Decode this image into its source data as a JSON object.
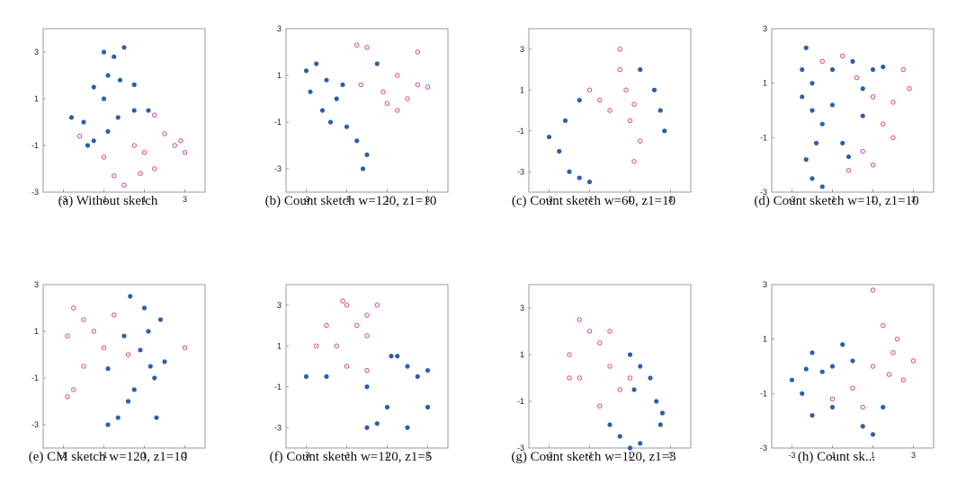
{
  "colors": {
    "class_a": "#2d5fa8",
    "class_b": "#d6439b"
  },
  "chart_data": [
    {
      "type": "scatter",
      "caption": "(a) Without sketch",
      "xlim": [
        -4,
        4
      ],
      "ylim": [
        -3,
        4
      ],
      "xticks": [
        "-3",
        "-1",
        "1",
        "3"
      ],
      "yticks": [
        "3",
        "1",
        "-1",
        "-3"
      ],
      "series": [
        {
          "marker": "filled",
          "points": [
            [
              -1,
              3
            ],
            [
              -0.5,
              2.8
            ],
            [
              0,
              3.2
            ],
            [
              -0.8,
              2
            ],
            [
              -1.5,
              1.5
            ],
            [
              -0.2,
              1.8
            ],
            [
              0.5,
              1.6
            ],
            [
              -1,
              1
            ],
            [
              -2,
              0
            ],
            [
              -1.5,
              -0.8
            ],
            [
              -0.8,
              -0.4
            ],
            [
              -0.3,
              0.2
            ],
            [
              0.5,
              0.5
            ],
            [
              1.2,
              0.5
            ],
            [
              -1.8,
              -1
            ],
            [
              -2.6,
              0.2
            ]
          ]
        },
        {
          "marker": "open",
          "points": [
            [
              1.5,
              0.3
            ],
            [
              2,
              -0.5
            ],
            [
              2.5,
              -1
            ],
            [
              3,
              -1.3
            ],
            [
              1,
              -1.3
            ],
            [
              1.5,
              -2
            ],
            [
              0.5,
              -1
            ],
            [
              -0.5,
              -2.3
            ],
            [
              0,
              -2.7
            ],
            [
              -1,
              -1.5
            ],
            [
              -2.2,
              -0.6
            ],
            [
              0.8,
              -2.2
            ],
            [
              2.8,
              -0.8
            ]
          ]
        }
      ]
    },
    {
      "type": "scatter",
      "caption": "(b) Count sketch w=120, z1=10",
      "xlim": [
        -4,
        4
      ],
      "ylim": [
        -4,
        3
      ],
      "xticks": [
        "-3",
        "-1",
        "1",
        "3"
      ],
      "yticks": [
        "3",
        "1",
        "-1",
        "-3"
      ],
      "series": [
        {
          "marker": "filled",
          "points": [
            [
              -3,
              1.2
            ],
            [
              -2.5,
              1.5
            ],
            [
              -2,
              0.8
            ],
            [
              -2.8,
              0.3
            ],
            [
              -1.5,
              0
            ],
            [
              -1.8,
              -1
            ],
            [
              -1,
              -1.2
            ],
            [
              -0.5,
              -1.8
            ],
            [
              0,
              -2.4
            ],
            [
              -0.2,
              -3
            ],
            [
              -2.2,
              -0.5
            ],
            [
              0.5,
              1.5
            ],
            [
              -1.2,
              0.6
            ]
          ]
        },
        {
          "marker": "open",
          "points": [
            [
              -0.5,
              2.3
            ],
            [
              0,
              2.2
            ],
            [
              1.5,
              1
            ],
            [
              2,
              0
            ],
            [
              1,
              -0.2
            ],
            [
              2.5,
              0.6
            ],
            [
              3,
              0.5
            ],
            [
              2.5,
              2
            ],
            [
              -0.3,
              0.6
            ],
            [
              0.8,
              0.3
            ],
            [
              1.5,
              -0.5
            ]
          ]
        }
      ]
    },
    {
      "type": "scatter",
      "caption": "(c) Count sketch w=60, z1=10",
      "xlim": [
        -4,
        4
      ],
      "ylim": [
        -4,
        4
      ],
      "xticks": [
        "-3",
        "-1",
        "1",
        "3"
      ],
      "yticks": [
        "3",
        "1",
        "-1",
        "-3"
      ],
      "series": [
        {
          "marker": "filled",
          "points": [
            [
              -3,
              -1.3
            ],
            [
              -2.5,
              -2
            ],
            [
              -2,
              -3
            ],
            [
              -1.5,
              -3.3
            ],
            [
              -1,
              -3.5
            ],
            [
              -2.2,
              -0.5
            ],
            [
              -1.5,
              0.5
            ],
            [
              1.5,
              2
            ],
            [
              2.2,
              1
            ],
            [
              2.5,
              0
            ],
            [
              2.7,
              -1
            ]
          ]
        },
        {
          "marker": "open",
          "points": [
            [
              -1,
              1
            ],
            [
              0,
              0
            ],
            [
              1,
              -0.5
            ],
            [
              1.5,
              -1.5
            ],
            [
              1.2,
              -2.5
            ],
            [
              -0.5,
              0.5
            ],
            [
              0.5,
              2
            ],
            [
              0.8,
              1
            ],
            [
              1.2,
              0.3
            ],
            [
              0.5,
              3
            ]
          ]
        }
      ]
    },
    {
      "type": "scatter",
      "caption": "(d) Count sketch w=10, z1=10",
      "xlim": [
        -4,
        4
      ],
      "ylim": [
        -3,
        3
      ],
      "xticks": [
        "-3",
        "-1",
        "1",
        "3"
      ],
      "yticks": [
        "3",
        "1",
        "-1",
        "-3"
      ],
      "series": [
        {
          "marker": "filled",
          "points": [
            [
              -2.3,
              2.3
            ],
            [
              -2.5,
              1.5
            ],
            [
              -2,
              1
            ],
            [
              -2.5,
              0.5
            ],
            [
              -2,
              0
            ],
            [
              -1.5,
              -0.5
            ],
            [
              -1.8,
              -1.2
            ],
            [
              -2.3,
              -1.8
            ],
            [
              -2,
              -2.5
            ],
            [
              -1.5,
              -2.8
            ],
            [
              -0.5,
              -1.2
            ],
            [
              0.5,
              0.8
            ],
            [
              1,
              1.5
            ],
            [
              1.5,
              1.6
            ],
            [
              -1,
              0.2
            ],
            [
              0,
              1.8
            ],
            [
              0.5,
              -0.2
            ],
            [
              -0.2,
              -1.7
            ],
            [
              -1,
              1.5
            ]
          ]
        },
        {
          "marker": "open",
          "points": [
            [
              -1.5,
              1.8
            ],
            [
              -0.5,
              2
            ],
            [
              0.2,
              1.2
            ],
            [
              1,
              0.5
            ],
            [
              2,
              0.3
            ],
            [
              2.8,
              0.8
            ],
            [
              2.5,
              1.5
            ],
            [
              1.5,
              -0.5
            ],
            [
              0.5,
              -1.5
            ],
            [
              1,
              -2
            ],
            [
              -0.2,
              -2.2
            ],
            [
              2,
              -1
            ]
          ]
        }
      ]
    },
    {
      "type": "scatter",
      "caption": "(e) CM sketch w=120, z1=10",
      "xlim": [
        -4,
        4
      ],
      "ylim": [
        -4,
        3
      ],
      "xticks": [
        "-3",
        "-1",
        "1",
        "3"
      ],
      "yticks": [
        "3",
        "1",
        "-1",
        "-3"
      ],
      "series": [
        {
          "marker": "filled",
          "points": [
            [
              0.3,
              2.5
            ],
            [
              1,
              2
            ],
            [
              1.8,
              1.5
            ],
            [
              1.2,
              1
            ],
            [
              0.8,
              0.2
            ],
            [
              1.3,
              -0.5
            ],
            [
              1.5,
              -1
            ],
            [
              0.5,
              -1.5
            ],
            [
              0.2,
              -2
            ],
            [
              -0.3,
              -2.7
            ],
            [
              -0.8,
              -3
            ],
            [
              1.6,
              -2.7
            ],
            [
              2,
              -0.3
            ],
            [
              0,
              0.8
            ],
            [
              -0.8,
              -0.6
            ]
          ]
        },
        {
          "marker": "open",
          "points": [
            [
              -2.5,
              2
            ],
            [
              -2,
              1.5
            ],
            [
              -1.5,
              1
            ],
            [
              -1,
              0.3
            ],
            [
              -2,
              -0.5
            ],
            [
              -2.5,
              -1.5
            ],
            [
              -2.8,
              -1.8
            ],
            [
              -0.5,
              1.7
            ],
            [
              0.2,
              0
            ],
            [
              -2.8,
              0.8
            ],
            [
              3,
              0.3
            ]
          ]
        }
      ]
    },
    {
      "type": "scatter",
      "caption": "(f) Count sketch w=120, z1=5",
      "xlim": [
        -4,
        4
      ],
      "ylim": [
        -4,
        4
      ],
      "xticks": [
        "-3",
        "-1",
        "1",
        "3"
      ],
      "yticks": [
        "3",
        "1",
        "-1",
        "-3"
      ],
      "series": [
        {
          "marker": "filled",
          "points": [
            [
              0,
              -1
            ],
            [
              1,
              -2
            ],
            [
              2,
              -3
            ],
            [
              3,
              -2
            ],
            [
              2,
              0
            ],
            [
              1.5,
              0.5
            ],
            [
              2.5,
              -0.5
            ],
            [
              0,
              -3
            ],
            [
              -2,
              -0.5
            ],
            [
              -3,
              -0.5
            ],
            [
              1.2,
              0.5
            ],
            [
              3,
              -0.2
            ],
            [
              0.5,
              -2.8
            ]
          ]
        },
        {
          "marker": "open",
          "points": [
            [
              -1,
              3
            ],
            [
              0,
              2.5
            ],
            [
              -2,
              2
            ],
            [
              -1.5,
              1
            ],
            [
              -1,
              0
            ],
            [
              0,
              1.5
            ],
            [
              -2.5,
              1
            ],
            [
              0.5,
              3
            ],
            [
              -0.5,
              2
            ],
            [
              -1.2,
              3.2
            ],
            [
              0,
              -0.2
            ]
          ]
        }
      ]
    },
    {
      "type": "scatter",
      "caption": "(g) Count sketch w=120, z1=3",
      "xlim": [
        -4,
        4
      ],
      "ylim": [
        -3,
        4
      ],
      "xticks": [
        "-3",
        "-1",
        "1",
        "3"
      ],
      "yticks": [
        "3",
        "1",
        "-1",
        "-3"
      ],
      "series": [
        {
          "marker": "filled",
          "points": [
            [
              2.5,
              -2
            ],
            [
              2.3,
              -1
            ],
            [
              2,
              0
            ],
            [
              1.5,
              0.5
            ],
            [
              1,
              1
            ],
            [
              0,
              -2
            ],
            [
              0.5,
              -2.5
            ],
            [
              1,
              -3
            ],
            [
              1.5,
              -2.8
            ],
            [
              2.6,
              -1.5
            ],
            [
              1.2,
              -0.5
            ]
          ]
        },
        {
          "marker": "open",
          "points": [
            [
              -1,
              2
            ],
            [
              -2,
              1
            ],
            [
              -1.5,
              0
            ],
            [
              0,
              0.5
            ],
            [
              0.5,
              -0.5
            ],
            [
              1,
              0
            ],
            [
              -0.5,
              1.5
            ],
            [
              -1.5,
              2.5
            ],
            [
              -2,
              0
            ],
            [
              -0.5,
              -1.2
            ],
            [
              0,
              2
            ]
          ]
        }
      ]
    },
    {
      "type": "scatter",
      "caption": "(h) Count sk...",
      "xlim": [
        -4,
        4
      ],
      "ylim": [
        -3,
        3
      ],
      "xticks": [
        "-3",
        "-1",
        "1",
        "3"
      ],
      "yticks": [
        "3",
        "1",
        "-1",
        "-3"
      ],
      "series": [
        {
          "marker": "filled",
          "points": [
            [
              -3,
              -0.5
            ],
            [
              -2,
              0.5
            ],
            [
              -1.5,
              -0.2
            ],
            [
              -1,
              0
            ],
            [
              0,
              0.2
            ],
            [
              -2.5,
              -1
            ],
            [
              -2,
              -1.8
            ],
            [
              -1,
              -1.5
            ],
            [
              0.5,
              -2.2
            ],
            [
              1,
              -2.5
            ],
            [
              -0.5,
              0.8
            ],
            [
              1.5,
              -1.5
            ],
            [
              -2.3,
              -0.1
            ]
          ]
        },
        {
          "marker": "open",
          "points": [
            [
              1,
              2.8
            ],
            [
              1.5,
              1.5
            ],
            [
              2,
              0.5
            ],
            [
              1,
              0
            ],
            [
              0,
              -0.8
            ],
            [
              -1,
              -1.2
            ],
            [
              2.5,
              -0.5
            ],
            [
              3,
              0.2
            ],
            [
              0.5,
              -1.5
            ],
            [
              1.8,
              -0.3
            ],
            [
              2.2,
              1
            ]
          ]
        }
      ]
    }
  ]
}
